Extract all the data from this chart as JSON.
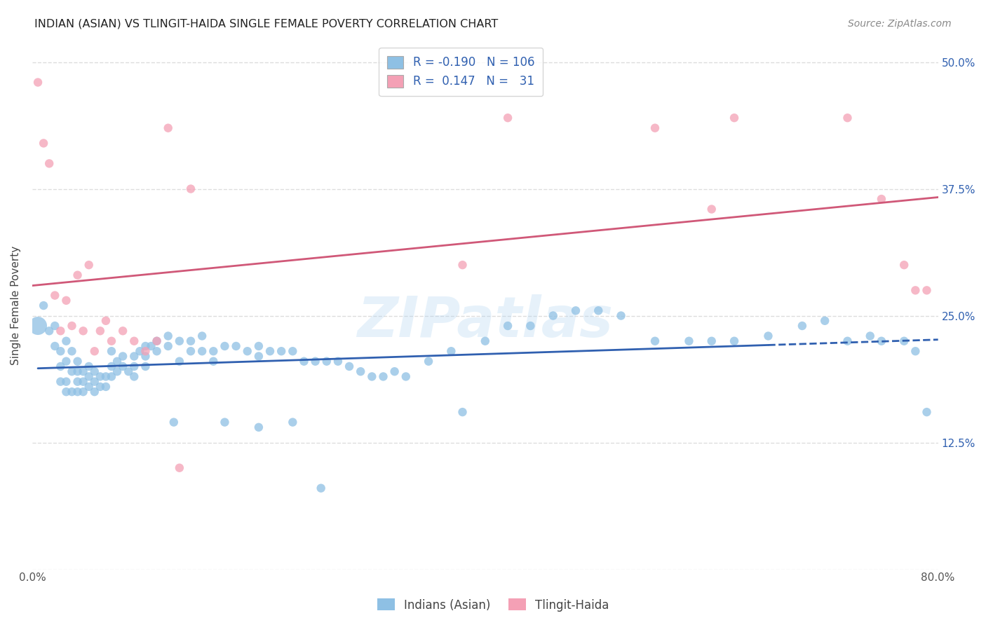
{
  "title": "INDIAN (ASIAN) VS TLINGIT-HAIDA SINGLE FEMALE POVERTY CORRELATION CHART",
  "source": "Source: ZipAtlas.com",
  "ylabel": "Single Female Poverty",
  "xlim": [
    0.0,
    0.8
  ],
  "ylim": [
    0.0,
    0.52
  ],
  "background_color": "#ffffff",
  "grid_color": "#dddddd",
  "watermark": "ZIPatlas",
  "blue_color": "#8ec0e4",
  "pink_color": "#f4a0b5",
  "blue_line_color": "#3060b0",
  "pink_line_color": "#d05878",
  "legend_R_blue": "-0.190",
  "legend_N_blue": "106",
  "legend_R_pink": "0.147",
  "legend_N_pink": "31",
  "blue_scatter_x": [
    0.005,
    0.01,
    0.015,
    0.02,
    0.02,
    0.025,
    0.025,
    0.025,
    0.03,
    0.03,
    0.03,
    0.03,
    0.035,
    0.035,
    0.035,
    0.04,
    0.04,
    0.04,
    0.04,
    0.045,
    0.045,
    0.045,
    0.05,
    0.05,
    0.05,
    0.055,
    0.055,
    0.055,
    0.06,
    0.06,
    0.065,
    0.065,
    0.07,
    0.07,
    0.07,
    0.075,
    0.075,
    0.08,
    0.08,
    0.085,
    0.09,
    0.09,
    0.09,
    0.095,
    0.1,
    0.1,
    0.1,
    0.105,
    0.11,
    0.11,
    0.12,
    0.12,
    0.125,
    0.13,
    0.13,
    0.14,
    0.14,
    0.15,
    0.15,
    0.16,
    0.16,
    0.17,
    0.17,
    0.18,
    0.19,
    0.2,
    0.2,
    0.21,
    0.22,
    0.23,
    0.24,
    0.25,
    0.26,
    0.27,
    0.28,
    0.29,
    0.3,
    0.31,
    0.32,
    0.33,
    0.35,
    0.37,
    0.38,
    0.4,
    0.42,
    0.44,
    0.46,
    0.48,
    0.5,
    0.52,
    0.55,
    0.58,
    0.6,
    0.62,
    0.65,
    0.68,
    0.7,
    0.72,
    0.74,
    0.75,
    0.77,
    0.78,
    0.79,
    0.2,
    0.23,
    0.255
  ],
  "blue_scatter_y": [
    0.24,
    0.26,
    0.235,
    0.24,
    0.22,
    0.215,
    0.2,
    0.185,
    0.225,
    0.205,
    0.185,
    0.175,
    0.215,
    0.195,
    0.175,
    0.205,
    0.195,
    0.185,
    0.175,
    0.195,
    0.185,
    0.175,
    0.2,
    0.19,
    0.18,
    0.195,
    0.185,
    0.175,
    0.19,
    0.18,
    0.19,
    0.18,
    0.215,
    0.2,
    0.19,
    0.205,
    0.195,
    0.21,
    0.2,
    0.195,
    0.21,
    0.2,
    0.19,
    0.215,
    0.22,
    0.21,
    0.2,
    0.22,
    0.225,
    0.215,
    0.23,
    0.22,
    0.145,
    0.225,
    0.205,
    0.225,
    0.215,
    0.23,
    0.215,
    0.215,
    0.205,
    0.22,
    0.145,
    0.22,
    0.215,
    0.22,
    0.21,
    0.215,
    0.215,
    0.215,
    0.205,
    0.205,
    0.205,
    0.205,
    0.2,
    0.195,
    0.19,
    0.19,
    0.195,
    0.19,
    0.205,
    0.215,
    0.155,
    0.225,
    0.24,
    0.24,
    0.25,
    0.255,
    0.255,
    0.25,
    0.225,
    0.225,
    0.225,
    0.225,
    0.23,
    0.24,
    0.245,
    0.225,
    0.23,
    0.225,
    0.225,
    0.215,
    0.155,
    0.14,
    0.145,
    0.08
  ],
  "pink_scatter_x": [
    0.005,
    0.01,
    0.015,
    0.02,
    0.025,
    0.03,
    0.035,
    0.04,
    0.045,
    0.05,
    0.055,
    0.06,
    0.065,
    0.07,
    0.08,
    0.09,
    0.1,
    0.11,
    0.12,
    0.13,
    0.14,
    0.38,
    0.42,
    0.55,
    0.6,
    0.62,
    0.72,
    0.75,
    0.77,
    0.78,
    0.79
  ],
  "pink_scatter_y": [
    0.48,
    0.42,
    0.4,
    0.27,
    0.235,
    0.265,
    0.24,
    0.29,
    0.235,
    0.3,
    0.215,
    0.235,
    0.245,
    0.225,
    0.235,
    0.225,
    0.215,
    0.225,
    0.435,
    0.1,
    0.375,
    0.3,
    0.445,
    0.435,
    0.355,
    0.445,
    0.445,
    0.365,
    0.3,
    0.275,
    0.275
  ],
  "blue_dot_size": 80,
  "blue_big_size": 350,
  "pink_dot_size": 80
}
